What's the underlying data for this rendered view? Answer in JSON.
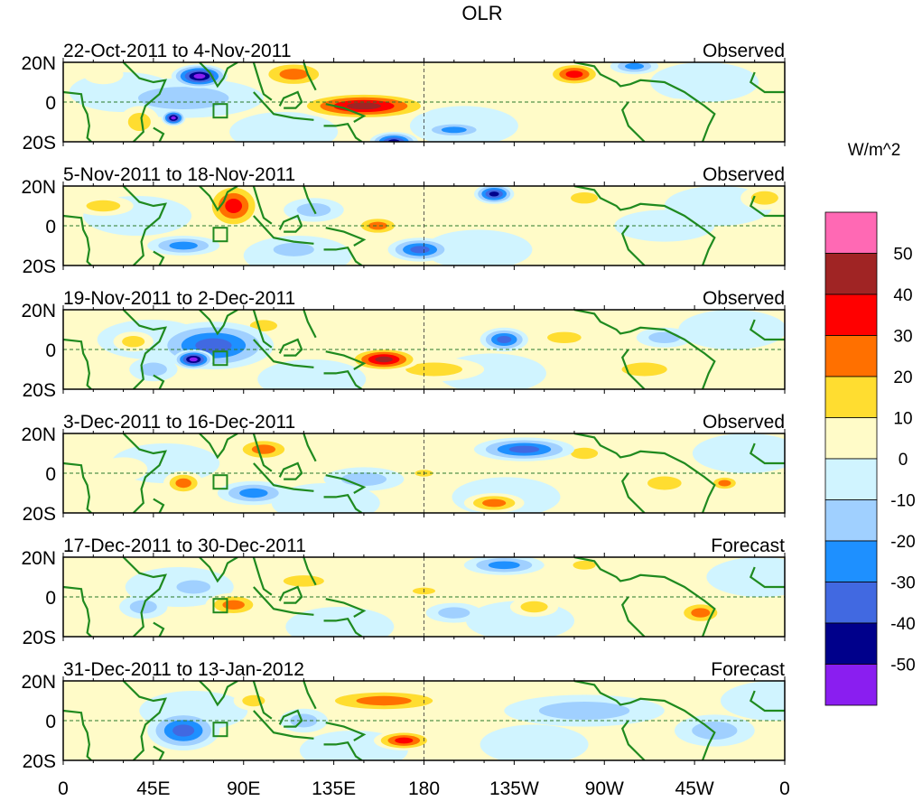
{
  "chart_data": {
    "type": "heatmap",
    "title": "OLR",
    "colorbar_label": "W/m^2",
    "colorbar_ticks": [
      "50",
      "40",
      "30",
      "20",
      "10",
      "0",
      "-10",
      "-20",
      "-30",
      "-40",
      "-50"
    ],
    "levels": [
      -50,
      -40,
      -30,
      -20,
      -10,
      0,
      10,
      20,
      30,
      40,
      50
    ],
    "colors": [
      "#8a1ef0",
      "#00008b",
      "#4169e1",
      "#1e90ff",
      "#a0d0ff",
      "#d0f4ff",
      "#fffbc8",
      "#ffdd30",
      "#ff7000",
      "#ff0000",
      "#a02424",
      "#ff69b4"
    ],
    "x_ticks": [
      "0",
      "45E",
      "90E",
      "135E",
      "180",
      "135W",
      "90W",
      "45W",
      "0"
    ],
    "x_tick_values": [
      0,
      45,
      90,
      135,
      180,
      225,
      270,
      315,
      360
    ],
    "y_ticks": [
      "20N",
      "0",
      "20S"
    ],
    "xlim": [
      0,
      360
    ],
    "ylim": [
      -20,
      20
    ],
    "panels": [
      {
        "period": "22-Oct-2011 to 4-Nov-2011",
        "type": "Observed",
        "anomalies": [
          [
            60,
            2,
            40,
            10,
            -15
          ],
          [
            68,
            13,
            14,
            6,
            -55
          ],
          [
            55,
            -8,
            6,
            4,
            -55
          ],
          [
            115,
            14,
            18,
            7,
            25
          ],
          [
            150,
            -2,
            35,
            7,
            42
          ],
          [
            255,
            14,
            14,
            6,
            35
          ],
          [
            165,
            -20,
            12,
            5,
            -45
          ],
          [
            195,
            -14,
            16,
            4,
            -25
          ],
          [
            38,
            -10,
            10,
            8,
            15
          ],
          [
            20,
            14,
            10,
            5,
            8
          ],
          [
            230,
            8,
            30,
            8,
            8
          ],
          [
            300,
            -6,
            25,
            8,
            8
          ],
          [
            285,
            18,
            12,
            4,
            -25
          ]
        ]
      },
      {
        "period": "5-Nov-2011 to 18-Nov-2011",
        "type": "Observed",
        "anomalies": [
          [
            85,
            10,
            14,
            12,
            35
          ],
          [
            60,
            -10,
            18,
            5,
            -25
          ],
          [
            115,
            -12,
            18,
            6,
            -20
          ],
          [
            125,
            8,
            15,
            6,
            -20
          ],
          [
            157,
            0,
            12,
            5,
            25
          ],
          [
            178,
            -12,
            16,
            6,
            -40
          ],
          [
            215,
            16,
            10,
            5,
            -45
          ],
          [
            260,
            14,
            12,
            5,
            20
          ],
          [
            350,
            14,
            12,
            6,
            20
          ],
          [
            20,
            10,
            15,
            5,
            12
          ],
          [
            300,
            0,
            25,
            8,
            -8
          ],
          [
            40,
            -15,
            15,
            5,
            10
          ]
        ]
      },
      {
        "period": "19-Nov-2011 to 2-Dec-2011",
        "type": "Observed",
        "anomalies": [
          [
            75,
            2,
            30,
            12,
            -40
          ],
          [
            65,
            -5,
            10,
            5,
            -55
          ],
          [
            160,
            -5,
            18,
            6,
            45
          ],
          [
            220,
            5,
            12,
            6,
            -35
          ],
          [
            250,
            6,
            15,
            5,
            20
          ],
          [
            185,
            -10,
            25,
            6,
            20
          ],
          [
            35,
            4,
            10,
            5,
            15
          ],
          [
            100,
            12,
            12,
            5,
            15
          ],
          [
            300,
            6,
            14,
            5,
            -20
          ],
          [
            45,
            -10,
            12,
            6,
            -15
          ],
          [
            290,
            -10,
            20,
            6,
            15
          ]
        ]
      },
      {
        "period": "3-Dec-2011 to 16-Dec-2011",
        "type": "Observed",
        "anomalies": [
          [
            230,
            12,
            25,
            6,
            -40
          ],
          [
            100,
            12,
            15,
            6,
            25
          ],
          [
            95,
            -10,
            18,
            6,
            -25
          ],
          [
            60,
            -5,
            10,
            6,
            30
          ],
          [
            150,
            -3,
            20,
            6,
            -20
          ],
          [
            180,
            0,
            8,
            3,
            20
          ],
          [
            215,
            -15,
            15,
            5,
            25
          ],
          [
            300,
            -5,
            15,
            6,
            20
          ],
          [
            330,
            -5,
            8,
            4,
            25
          ],
          [
            30,
            2,
            12,
            6,
            10
          ],
          [
            260,
            10,
            12,
            5,
            15
          ]
        ]
      },
      {
        "period": "17-Dec-2011 to 30-Dec-2011",
        "type": "Forecast",
        "anomalies": [
          [
            220,
            16,
            20,
            5,
            -30
          ],
          [
            260,
            16,
            10,
            4,
            20
          ],
          [
            85,
            -4,
            14,
            6,
            30
          ],
          [
            65,
            5,
            15,
            6,
            -20
          ],
          [
            180,
            3,
            10,
            3,
            20
          ],
          [
            195,
            -8,
            14,
            5,
            -20
          ],
          [
            235,
            -5,
            12,
            5,
            15
          ],
          [
            318,
            -8,
            12,
            6,
            30
          ],
          [
            120,
            8,
            18,
            5,
            15
          ],
          [
            40,
            -5,
            12,
            6,
            -15
          ]
        ]
      },
      {
        "period": "31-Dec-2011 to 13-Jan-2012",
        "type": "Forecast",
        "anomalies": [
          [
            60,
            -5,
            18,
            10,
            -35
          ],
          [
            160,
            10,
            35,
            6,
            25
          ],
          [
            170,
            -10,
            15,
            5,
            35
          ],
          [
            260,
            5,
            40,
            8,
            -12
          ],
          [
            120,
            0,
            12,
            6,
            -15
          ],
          [
            325,
            -5,
            20,
            8,
            -15
          ],
          [
            95,
            10,
            10,
            5,
            15
          ]
        ]
      }
    ]
  }
}
